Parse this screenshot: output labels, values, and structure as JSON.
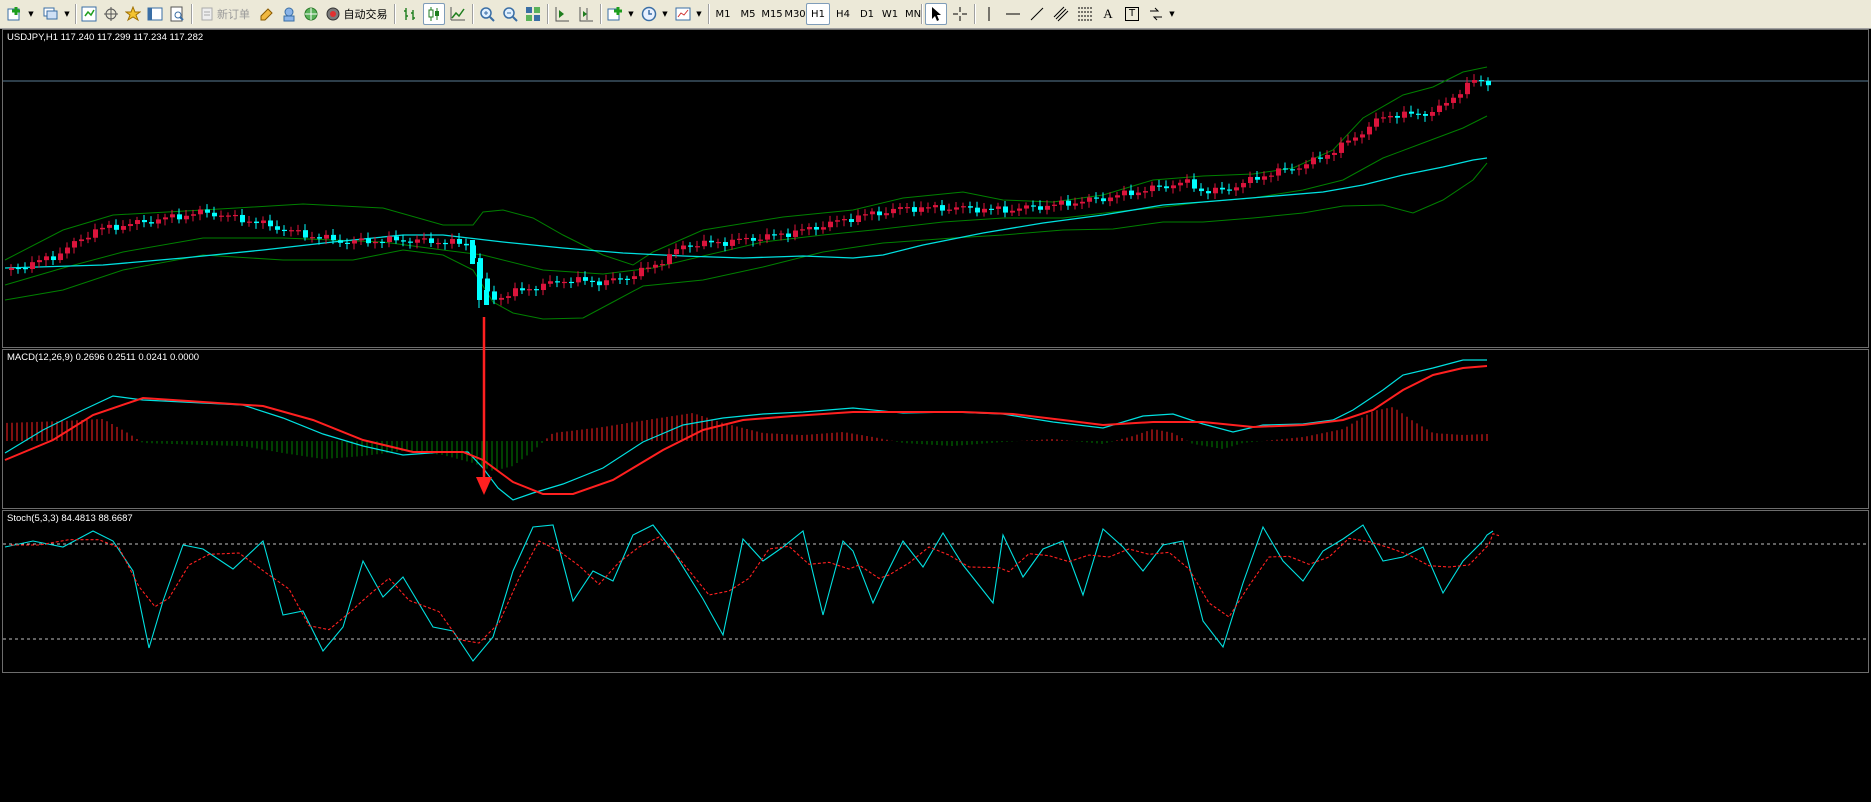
{
  "toolbar": {
    "new_order_label": "新订单",
    "auto_trading_label": "自动交易",
    "timeframes": [
      "M1",
      "M5",
      "M15",
      "M30",
      "H1",
      "H4",
      "D1",
      "W1",
      "MN"
    ],
    "active_timeframe": "H1",
    "text_tool_label": "A",
    "text_label_tool_label": "T"
  },
  "main_pane": {
    "title": "USDJPY,H1  117.240 117.299 117.234 117.282"
  },
  "macd_pane": {
    "title": "MACD(12,26,9) 0.2696 0.2511 0.0241 0.0000"
  },
  "stoch_pane": {
    "title": "Stoch(5,3,3) 84.4813 88.6687"
  },
  "colors": {
    "background": "#000000",
    "bull_candle": "#dc143c",
    "bear_candle": "#00ffff",
    "bollinger": "#008000",
    "moving_average": "#00e0e0",
    "macd_line": "#00e0e0",
    "signal_line": "#ff2020",
    "histogram_positive": "#ff2020",
    "histogram_negative": "#008000",
    "stoch_main": "#00e0e0",
    "stoch_signal": "#ff2020",
    "annotation_arrow": "#ff2020"
  }
}
